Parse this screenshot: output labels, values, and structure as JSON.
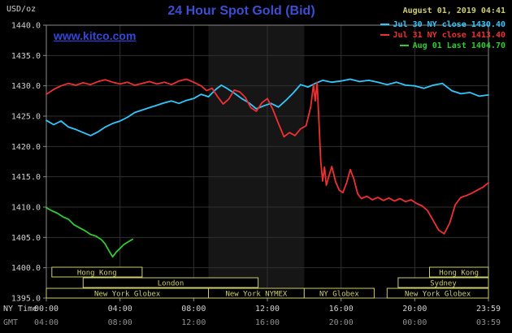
{
  "colors": {
    "background": "#000000",
    "plot_border": "#8a8a8a",
    "grid": "#303030",
    "band": "#161616",
    "title": "#3b4fd0",
    "watermark": "#3347e0",
    "date": "#cdcd6e",
    "session": "#cdcd6e",
    "axis_text": "#d0d0d0",
    "gmt_text": "#8f8f8f",
    "jul30": "#2fc8ff",
    "jul31": "#f03030",
    "aug01": "#2ecc2e"
  },
  "header": {
    "units": "USD/oz",
    "title": "24 Hour Spot Gold (Bid)",
    "datetime": "August 01, 2019 04:41",
    "watermark": "www.kitco.com"
  },
  "legend": [
    {
      "label": "Jul 30 NY close 1430.40",
      "color_key": "jul30"
    },
    {
      "label": "Jul 31 NY close 1413.40",
      "color_key": "jul31"
    },
    {
      "label": "Aug 01 Last 1404.70",
      "color_key": "aug01"
    }
  ],
  "axes": {
    "ny_label": "NY Time",
    "gmt_label": "GMT",
    "ny_ticks": [
      "00:00",
      "04:00",
      "08:00",
      "12:00",
      "16:00",
      "20:00",
      "23:59"
    ],
    "gmt_ticks": [
      "04:00",
      "08:00",
      "12:00",
      "16:00",
      "20:00",
      "00:00",
      "03:59"
    ],
    "y_ticks": [
      "1440.0",
      "1435.0",
      "1430.0",
      "1425.0",
      "1420.0",
      "1415.0",
      "1410.0",
      "1405.0",
      "1400.0",
      "1395.0"
    ]
  },
  "sessions": [
    [
      {
        "label": "Hong Kong",
        "start": 0.3,
        "end": 5.2
      },
      {
        "label": "Hong Kong",
        "start": 20.8,
        "end": 24
      }
    ],
    [
      {
        "label": "London",
        "start": 2.0,
        "end": 11.5
      },
      {
        "label": "Sydney",
        "start": 19.1,
        "end": 24
      }
    ],
    [
      {
        "label": "New York Globex",
        "start": 0,
        "end": 8.8
      },
      {
        "label": "New York NYMEX",
        "start": 8.8,
        "end": 14
      },
      {
        "label": "NY Globex",
        "start": 14,
        "end": 17.8
      },
      {
        "label": "New York Globex",
        "start": 18.5,
        "end": 24
      }
    ]
  ],
  "chart_data": {
    "type": "line",
    "title": "24 Hour Spot Gold (Bid)",
    "ylabel": "USD/oz",
    "x_unit": "hours, NY time",
    "xlim": [
      0,
      24
    ],
    "ylim": [
      1395,
      1440
    ],
    "y_gridlines_step": 5,
    "x_gridlines_hours": [
      4,
      8,
      12,
      16,
      20
    ],
    "nymex_band_hours": [
      8.8,
      14.0
    ],
    "series": [
      {
        "name": "Jul 30",
        "legend": "Jul 30 NY close 1430.40",
        "close": 1430.4,
        "color_key": "jul30",
        "points": [
          [
            0,
            1424.3
          ],
          [
            0.4,
            1423.6
          ],
          [
            0.8,
            1424.2
          ],
          [
            1.2,
            1423.2
          ],
          [
            1.6,
            1422.8
          ],
          [
            2.0,
            1422.3
          ],
          [
            2.4,
            1421.8
          ],
          [
            2.8,
            1422.4
          ],
          [
            3.2,
            1423.2
          ],
          [
            3.6,
            1423.8
          ],
          [
            4.0,
            1424.2
          ],
          [
            4.4,
            1424.8
          ],
          [
            4.8,
            1425.6
          ],
          [
            5.2,
            1426.0
          ],
          [
            5.6,
            1426.4
          ],
          [
            6.0,
            1426.8
          ],
          [
            6.4,
            1427.2
          ],
          [
            6.8,
            1427.5
          ],
          [
            7.2,
            1427.1
          ],
          [
            7.6,
            1427.6
          ],
          [
            8.0,
            1427.9
          ],
          [
            8.4,
            1428.6
          ],
          [
            8.8,
            1428.2
          ],
          [
            9.2,
            1429.4
          ],
          [
            9.5,
            1430.1
          ],
          [
            9.8,
            1429.6
          ],
          [
            10.2,
            1428.8
          ],
          [
            10.6,
            1427.9
          ],
          [
            11.0,
            1427.2
          ],
          [
            11.4,
            1426.2
          ],
          [
            11.8,
            1426.7
          ],
          [
            12.2,
            1427.1
          ],
          [
            12.6,
            1426.5
          ],
          [
            13.0,
            1427.6
          ],
          [
            13.4,
            1428.8
          ],
          [
            13.8,
            1430.2
          ],
          [
            14.2,
            1429.8
          ],
          [
            14.6,
            1430.4
          ],
          [
            15.0,
            1430.9
          ],
          [
            15.5,
            1430.6
          ],
          [
            16.0,
            1430.8
          ],
          [
            16.5,
            1431.1
          ],
          [
            17.0,
            1430.7
          ],
          [
            17.5,
            1430.9
          ],
          [
            18.0,
            1430.6
          ],
          [
            18.5,
            1430.2
          ],
          [
            19.0,
            1430.6
          ],
          [
            19.5,
            1430.1
          ],
          [
            20.0,
            1430.0
          ],
          [
            20.5,
            1429.6
          ],
          [
            21.0,
            1430.1
          ],
          [
            21.5,
            1430.4
          ],
          [
            22.0,
            1429.2
          ],
          [
            22.5,
            1428.7
          ],
          [
            23.0,
            1428.9
          ],
          [
            23.5,
            1428.3
          ],
          [
            24,
            1428.5
          ]
        ]
      },
      {
        "name": "Jul 31",
        "legend": "Jul 31 NY close 1413.40",
        "close": 1413.4,
        "color_key": "jul31",
        "points": [
          [
            0,
            1428.6
          ],
          [
            0.4,
            1429.4
          ],
          [
            0.8,
            1430.0
          ],
          [
            1.2,
            1430.4
          ],
          [
            1.6,
            1430.1
          ],
          [
            2.0,
            1430.5
          ],
          [
            2.4,
            1430.2
          ],
          [
            2.8,
            1430.7
          ],
          [
            3.2,
            1431.0
          ],
          [
            3.6,
            1430.6
          ],
          [
            4.0,
            1430.3
          ],
          [
            4.4,
            1430.6
          ],
          [
            4.8,
            1430.1
          ],
          [
            5.2,
            1430.4
          ],
          [
            5.6,
            1430.7
          ],
          [
            6.0,
            1430.3
          ],
          [
            6.4,
            1430.6
          ],
          [
            6.8,
            1430.2
          ],
          [
            7.2,
            1430.8
          ],
          [
            7.6,
            1431.1
          ],
          [
            8.0,
            1430.6
          ],
          [
            8.4,
            1430.0
          ],
          [
            8.7,
            1429.2
          ],
          [
            9.0,
            1429.6
          ],
          [
            9.3,
            1428.2
          ],
          [
            9.6,
            1427.0
          ],
          [
            9.9,
            1427.8
          ],
          [
            10.2,
            1429.3
          ],
          [
            10.5,
            1429.0
          ],
          [
            10.8,
            1428.1
          ],
          [
            11.1,
            1426.4
          ],
          [
            11.4,
            1425.8
          ],
          [
            11.7,
            1427.2
          ],
          [
            12.0,
            1427.9
          ],
          [
            12.3,
            1426.1
          ],
          [
            12.6,
            1423.8
          ],
          [
            12.9,
            1421.6
          ],
          [
            13.2,
            1422.3
          ],
          [
            13.5,
            1421.8
          ],
          [
            13.8,
            1422.9
          ],
          [
            14.1,
            1423.4
          ],
          [
            14.35,
            1426.5
          ],
          [
            14.5,
            1430.2
          ],
          [
            14.6,
            1427.5
          ],
          [
            14.7,
            1430.6
          ],
          [
            14.8,
            1424.0
          ],
          [
            14.9,
            1417.5
          ],
          [
            15.0,
            1414.3
          ],
          [
            15.1,
            1416.6
          ],
          [
            15.2,
            1413.6
          ],
          [
            15.35,
            1415.2
          ],
          [
            15.5,
            1416.7
          ],
          [
            15.7,
            1414.2
          ],
          [
            15.9,
            1412.8
          ],
          [
            16.1,
            1412.4
          ],
          [
            16.3,
            1414.0
          ],
          [
            16.5,
            1416.2
          ],
          [
            16.7,
            1414.6
          ],
          [
            16.9,
            1412.2
          ],
          [
            17.1,
            1411.4
          ],
          [
            17.4,
            1411.8
          ],
          [
            17.7,
            1411.2
          ],
          [
            18.0,
            1411.6
          ],
          [
            18.3,
            1411.1
          ],
          [
            18.6,
            1411.5
          ],
          [
            18.9,
            1411.0
          ],
          [
            19.2,
            1411.4
          ],
          [
            19.5,
            1410.9
          ],
          [
            19.8,
            1411.2
          ],
          [
            20.1,
            1410.6
          ],
          [
            20.4,
            1410.2
          ],
          [
            20.7,
            1409.4
          ],
          [
            21.0,
            1407.8
          ],
          [
            21.3,
            1406.2
          ],
          [
            21.6,
            1405.6
          ],
          [
            21.9,
            1407.4
          ],
          [
            22.2,
            1410.4
          ],
          [
            22.5,
            1411.6
          ],
          [
            22.8,
            1411.9
          ],
          [
            23.1,
            1412.3
          ],
          [
            23.4,
            1412.8
          ],
          [
            23.7,
            1413.3
          ],
          [
            24,
            1414.0
          ]
        ]
      },
      {
        "name": "Aug 01",
        "legend": "Aug 01 Last 1404.70",
        "last": 1404.7,
        "color_key": "aug01",
        "points": [
          [
            0,
            1409.9
          ],
          [
            0.3,
            1409.4
          ],
          [
            0.6,
            1409.0
          ],
          [
            0.9,
            1408.4
          ],
          [
            1.2,
            1408.0
          ],
          [
            1.5,
            1407.1
          ],
          [
            1.8,
            1406.6
          ],
          [
            2.1,
            1406.1
          ],
          [
            2.4,
            1405.5
          ],
          [
            2.7,
            1405.2
          ],
          [
            3.0,
            1404.6
          ],
          [
            3.2,
            1403.9
          ],
          [
            3.4,
            1402.8
          ],
          [
            3.6,
            1401.8
          ],
          [
            3.8,
            1402.6
          ],
          [
            4.0,
            1403.2
          ],
          [
            4.2,
            1403.8
          ],
          [
            4.45,
            1404.3
          ],
          [
            4.68,
            1404.7
          ]
        ]
      }
    ]
  }
}
